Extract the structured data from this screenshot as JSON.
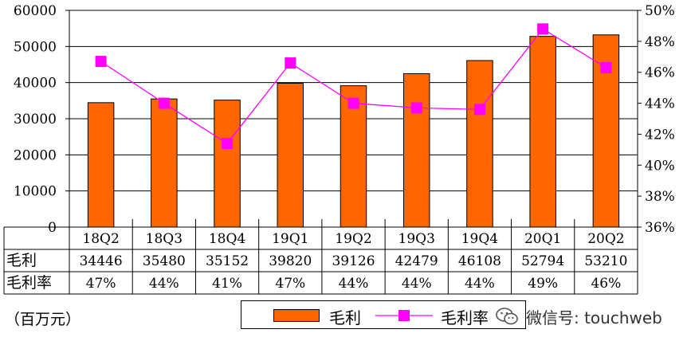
{
  "chart_data": {
    "type": "bar",
    "categories": [
      "18Q2",
      "18Q3",
      "18Q4",
      "19Q1",
      "19Q2",
      "19Q3",
      "19Q4",
      "20Q1",
      "20Q2"
    ],
    "series": [
      {
        "name": "毛利",
        "type": "bar",
        "axis": "left",
        "color": "#ff6600",
        "values": [
          34446,
          35480,
          35152,
          39820,
          39126,
          42479,
          46108,
          52794,
          53210
        ]
      },
      {
        "name": "毛利率",
        "type": "line",
        "axis": "right",
        "color": "#ff00ff",
        "values": [
          46.7,
          44.0,
          41.4,
          46.6,
          44.0,
          43.7,
          43.6,
          48.8,
          46.3
        ]
      }
    ],
    "y_left": {
      "min": 0,
      "max": 60000,
      "ticks": [
        "0",
        "10000",
        "20000",
        "30000",
        "40000",
        "50000",
        "60000"
      ]
    },
    "y_right": {
      "min": 36,
      "max": 50,
      "ticks": [
        "36%",
        "38%",
        "40%",
        "42%",
        "44%",
        "46%",
        "48%",
        "50%"
      ]
    },
    "grid": "horizontal",
    "data_table": {
      "rows": [
        {
          "label": "毛利",
          "cells": [
            "34446",
            "35480",
            "35152",
            "39820",
            "39126",
            "42479",
            "46108",
            "52794",
            "53210"
          ]
        },
        {
          "label": "毛利率",
          "cells": [
            "47%",
            "44%",
            "41%",
            "47%",
            "44%",
            "44%",
            "44%",
            "49%",
            "46%"
          ]
        }
      ]
    },
    "unit_note": "（百万元）",
    "legend": {
      "position": "bottom",
      "items": [
        "毛利",
        "毛利率"
      ]
    }
  },
  "watermark": {
    "icon": "wechat-icon",
    "text": "微信号: touchweb"
  }
}
